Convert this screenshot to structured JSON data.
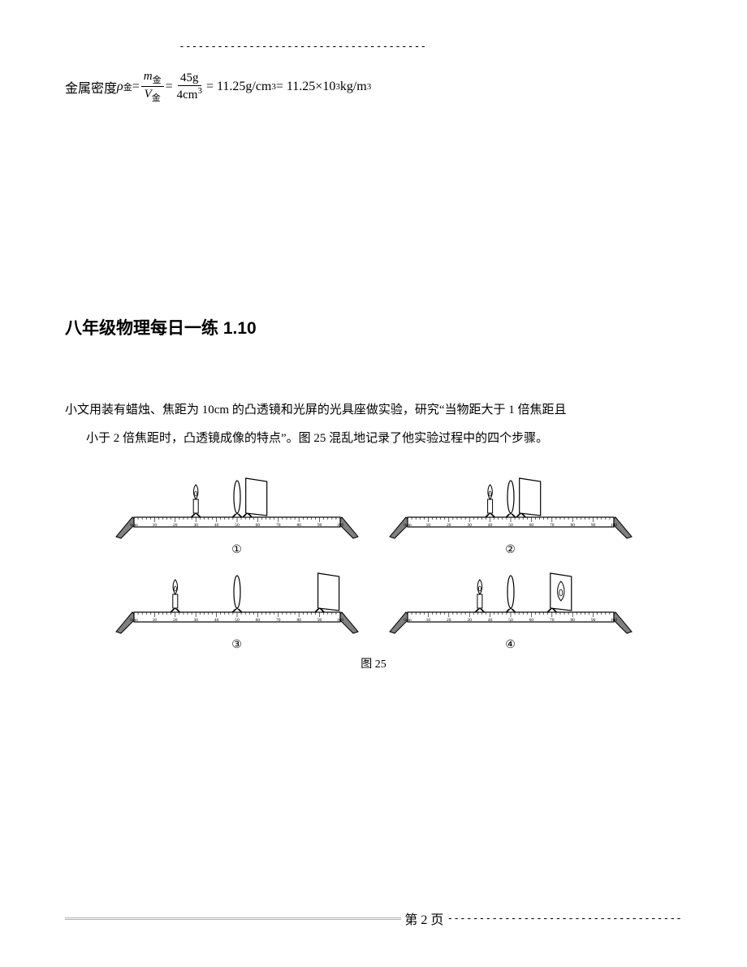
{
  "top_dashes": "---------------------------------------",
  "formula": {
    "prefix_cn": "金属密度",
    "rho": "ρ",
    "rho_sub": "金",
    "eq": " = ",
    "frac1_num_m": "m",
    "frac1_num_sub": "金",
    "frac1_den_v": "V",
    "frac1_den_sub": "金",
    "frac2_num": "45g",
    "frac2_den": "4cm",
    "frac2_den_exp": "3",
    "res1": " = 11.25g/cm",
    "res1_exp": "3",
    "res2a": " = 11.25×10",
    "res2_exp1": "3",
    "res2b": "kg/m",
    "res2_exp2": "3"
  },
  "heading": "八年级物理每日一练 1.10",
  "paragraph": {
    "line1": "小文用装有蜡烛、焦距为 10cm 的凸透镜和光屏的光具座做实验，研究“当物距大于 1 倍焦距且",
    "line2": "小于 2 倍焦距时，凸透镜成像的特点”。图 25 混乱地记录了他实验过程中的四个步骤。"
  },
  "diagram": {
    "ruler_ticks": [
      "0cm",
      "10",
      "20",
      "30",
      "40",
      "50",
      "60",
      "70",
      "80",
      "90",
      "100"
    ],
    "label1": "①",
    "label2": "②",
    "label3": "③",
    "label4": "④",
    "caption": "图 25",
    "benches": [
      {
        "candle": 30,
        "lens": 50,
        "screen": 55,
        "screenImage": false
      },
      {
        "candle": 40,
        "lens": 50,
        "screen": 55,
        "screenImage": false
      },
      {
        "candle": 20,
        "lens": 50,
        "screen": 90,
        "screenImage": false
      },
      {
        "candle": 35,
        "lens": 50,
        "screen": 70,
        "screenImage": true
      }
    ],
    "colors": {
      "stroke": "#000000",
      "rail_fill": "#ffffff",
      "screen_fill": "#ffffff",
      "leg_fill": "#808080"
    }
  },
  "footer": {
    "text": "第 2 页",
    "dashes": "-------------------------------------"
  }
}
